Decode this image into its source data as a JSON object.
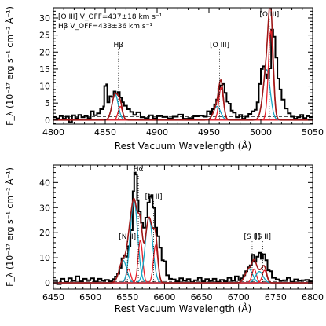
{
  "colors": {
    "observed": "#000000",
    "total_model": "#a01818",
    "broad_component": "#16a6c4",
    "narrow_component": "#e8212b",
    "continuum": "#555555"
  },
  "chart_data": [
    {
      "type": "line",
      "xlabel": "Rest Vacuum Wavelength (Å)",
      "ylabel": "F_λ (10⁻¹⁷ erg s⁻¹ cm⁻² Å⁻¹)",
      "xlim": [
        4800,
        5050
      ],
      "ylim": [
        -1.2,
        33
      ],
      "x_ticks": [
        4800,
        4850,
        4900,
        4950,
        5000,
        5050
      ],
      "y_ticks": [
        0,
        5,
        10,
        15,
        20,
        25,
        30
      ],
      "annotations": {
        "oiii_voff": "[O III] V_OFF=437±18 km s⁻¹",
        "hb_voff": "Hβ V_OFF=433±36 km s⁻¹"
      },
      "lines": [
        {
          "label": "Hβ",
          "x": 4862.7,
          "label_y": 21.5
        },
        {
          "label": "[O III]",
          "x": 4960.3,
          "label_y": 21.5
        },
        {
          "label": "[O III]",
          "x": 5008.2,
          "label_y": 30.5
        }
      ],
      "continuum_level": 1.0,
      "model": {
        "continuum": 0.0,
        "components": [
          {
            "name": "broad",
            "center": 4859.5,
            "sigma": 3.0,
            "amp": 7.6
          },
          {
            "name": "narrow",
            "center": 4864.5,
            "sigma": 2.1,
            "amp": 4.0
          },
          {
            "name": "broad",
            "center": 4957.8,
            "sigma": 3.4,
            "amp": 4.0
          },
          {
            "name": "narrow",
            "center": 4961.7,
            "sigma": 2.2,
            "amp": 9.6
          },
          {
            "name": "broad",
            "center": 5005.6,
            "sigma": 3.4,
            "amp": 14.8
          },
          {
            "name": "narrow",
            "center": 5009.6,
            "sigma": 2.3,
            "amp": 26.3
          }
        ]
      },
      "series": [
        {
          "kind": "observed",
          "step": true,
          "x": [
            4800,
            4803,
            4806,
            4809,
            4812,
            4815,
            4818,
            4821,
            4824,
            4827,
            4830,
            4833,
            4836,
            4839,
            4842,
            4845,
            4848,
            4849,
            4851,
            4852,
            4854,
            4856,
            4858,
            4860,
            4862,
            4864,
            4866,
            4868,
            4871,
            4874,
            4877,
            4880,
            4884,
            4888,
            4892,
            4896,
            4900,
            4905,
            4910,
            4915,
            4920,
            4925,
            4930,
            4935,
            4940,
            4945,
            4948,
            4951,
            4953,
            4955,
            4957,
            4959,
            4961,
            4963,
            4965,
            4967,
            4969,
            4971,
            4973,
            4976,
            4979,
            4982,
            4985,
            4988,
            4991,
            4994,
            4996,
            4998,
            5000,
            5002,
            5004,
            5006,
            5008,
            5010,
            5012,
            5014,
            5016,
            5018,
            5020,
            5023,
            5026,
            5029,
            5032,
            5035,
            5038,
            5041,
            5044,
            5047,
            5050
          ],
          "y": [
            0.8,
            0.5,
            1.3,
            0.4,
            1.0,
            -0.6,
            1.4,
            0.6,
            1.5,
            0.8,
            1.2,
            0.6,
            2.6,
            1.4,
            2.0,
            3.2,
            4.0,
            10.0,
            10.5,
            5.2,
            7.0,
            6.8,
            8.4,
            7.8,
            8.2,
            6.6,
            5.2,
            4.2,
            3.2,
            2.4,
            1.5,
            2.3,
            0.8,
            0.6,
            1.4,
            0.5,
            1.2,
            0.9,
            0.5,
            1.0,
            1.6,
            0.4,
            0.6,
            1.1,
            1.3,
            1.0,
            2.6,
            1.8,
            3.2,
            4.6,
            6.0,
            9.2,
            10.2,
            10.6,
            8.0,
            5.4,
            4.8,
            2.8,
            2.2,
            0.8,
            1.5,
            0.4,
            1.0,
            1.8,
            2.6,
            3.0,
            5.2,
            10.6,
            15.0,
            15.8,
            13.4,
            12.4,
            15.2,
            26.6,
            24.5,
            18.4,
            12.2,
            9.0,
            6.0,
            3.4,
            2.0,
            1.0,
            0.4,
            0.8,
            1.5,
            0.6,
            1.2,
            0.8,
            0.8
          ]
        }
      ]
    },
    {
      "type": "line",
      "xlabel": "Rest Vacuum Wavelength (Å)",
      "ylabel": "F_λ (10⁻¹⁷ erg s⁻¹ cm⁻² Å⁻¹)",
      "xlim": [
        6450,
        6800
      ],
      "ylim": [
        -2.5,
        47
      ],
      "x_ticks": [
        6450,
        6500,
        6550,
        6600,
        6650,
        6700,
        6750,
        6800
      ],
      "y_ticks": [
        0,
        10,
        20,
        30,
        40
      ],
      "lines": [
        {
          "label": "[N II]",
          "x": 6549.9,
          "label_y": 17.5
        },
        {
          "label": "Hα",
          "x": 6564.6,
          "label_y": 44.5
        },
        {
          "label": "[N II]",
          "x": 6585.3,
          "label_y": 33.5
        },
        {
          "label": "[S II]",
          "x": 6718.3,
          "label_y": 17.5
        },
        {
          "label": "[S II]",
          "x": 6732.7,
          "label_y": 17.5
        }
      ],
      "continuum_level": 0.5,
      "model": {
        "continuum": 0.0,
        "components": [
          {
            "name": "broad",
            "center": 6544.0,
            "sigma": 5.0,
            "amp": 9.0
          },
          {
            "name": "narrow",
            "center": 6551.4,
            "sigma": 3.0,
            "amp": 5.5
          },
          {
            "name": "broad",
            "center": 6558.7,
            "sigma": 5.0,
            "amp": 33.0
          },
          {
            "name": "narrow",
            "center": 6567.4,
            "sigma": 3.0,
            "amp": 17.0
          },
          {
            "name": "broad",
            "center": 6579.0,
            "sigma": 5.0,
            "amp": 26.0
          },
          {
            "name": "narrow",
            "center": 6588.0,
            "sigma": 3.0,
            "amp": 15.0
          },
          {
            "name": "broad",
            "center": 6714.0,
            "sigma": 5.0,
            "amp": 5.5
          },
          {
            "name": "narrow",
            "center": 6721.0,
            "sigma": 3.0,
            "amp": 5.5
          },
          {
            "name": "broad",
            "center": 6728.0,
            "sigma": 5.0,
            "amp": 4.5
          },
          {
            "name": "narrow",
            "center": 6735.0,
            "sigma": 3.0,
            "amp": 5.0
          }
        ]
      },
      "series": [
        {
          "kind": "observed",
          "step": true,
          "x": [
            6450,
            6455,
            6460,
            6465,
            6470,
            6475,
            6480,
            6485,
            6490,
            6495,
            6500,
            6505,
            6510,
            6515,
            6520,
            6525,
            6530,
            6533,
            6536,
            6539,
            6542,
            6545,
            6548,
            6551,
            6554,
            6557,
            6559,
            6561,
            6563,
            6565,
            6568,
            6571,
            6574,
            6577,
            6580,
            6582,
            6584,
            6587,
            6590,
            6593,
            6596,
            6599,
            6602,
            6606,
            6610,
            6615,
            6620,
            6625,
            6630,
            6635,
            6640,
            6645,
            6650,
            6655,
            6660,
            6665,
            6670,
            6675,
            6680,
            6685,
            6690,
            6695,
            6700,
            6703,
            6706,
            6709,
            6712,
            6715,
            6718,
            6721,
            6724,
            6727,
            6730,
            6733,
            6736,
            6739,
            6742,
            6745,
            6750,
            6755,
            6760,
            6765,
            6770,
            6775,
            6780,
            6785,
            6790,
            6795,
            6800
          ],
          "y": [
            1.0,
            -0.5,
            1.6,
            0.3,
            1.8,
            0.8,
            2.6,
            0.6,
            1.6,
            1.0,
            1.8,
            0.5,
            1.6,
            0.8,
            1.2,
            0.6,
            1.5,
            2.5,
            3.6,
            6.0,
            9.8,
            11.0,
            10.4,
            14.6,
            21.0,
            36.5,
            44.0,
            43.2,
            33.0,
            28.5,
            24.0,
            22.0,
            26.0,
            32.0,
            34.4,
            35.0,
            30.0,
            22.0,
            18.6,
            14.0,
            9.0,
            8.6,
            3.0,
            1.6,
            1.4,
            0.6,
            1.8,
            0.8,
            1.5,
            0.2,
            1.0,
            2.0,
            0.6,
            1.5,
            0.7,
            1.6,
            0.4,
            1.2,
            0.6,
            2.0,
            0.8,
            2.6,
            1.0,
            1.8,
            3.0,
            4.6,
            6.2,
            7.0,
            11.2,
            8.4,
            10.4,
            12.0,
            9.6,
            11.4,
            9.0,
            5.0,
            4.6,
            2.0,
            1.4,
            0.8,
            1.0,
            2.0,
            0.4,
            1.4,
            0.8,
            1.0,
            1.2,
            0.6,
            0.8
          ]
        }
      ]
    }
  ]
}
